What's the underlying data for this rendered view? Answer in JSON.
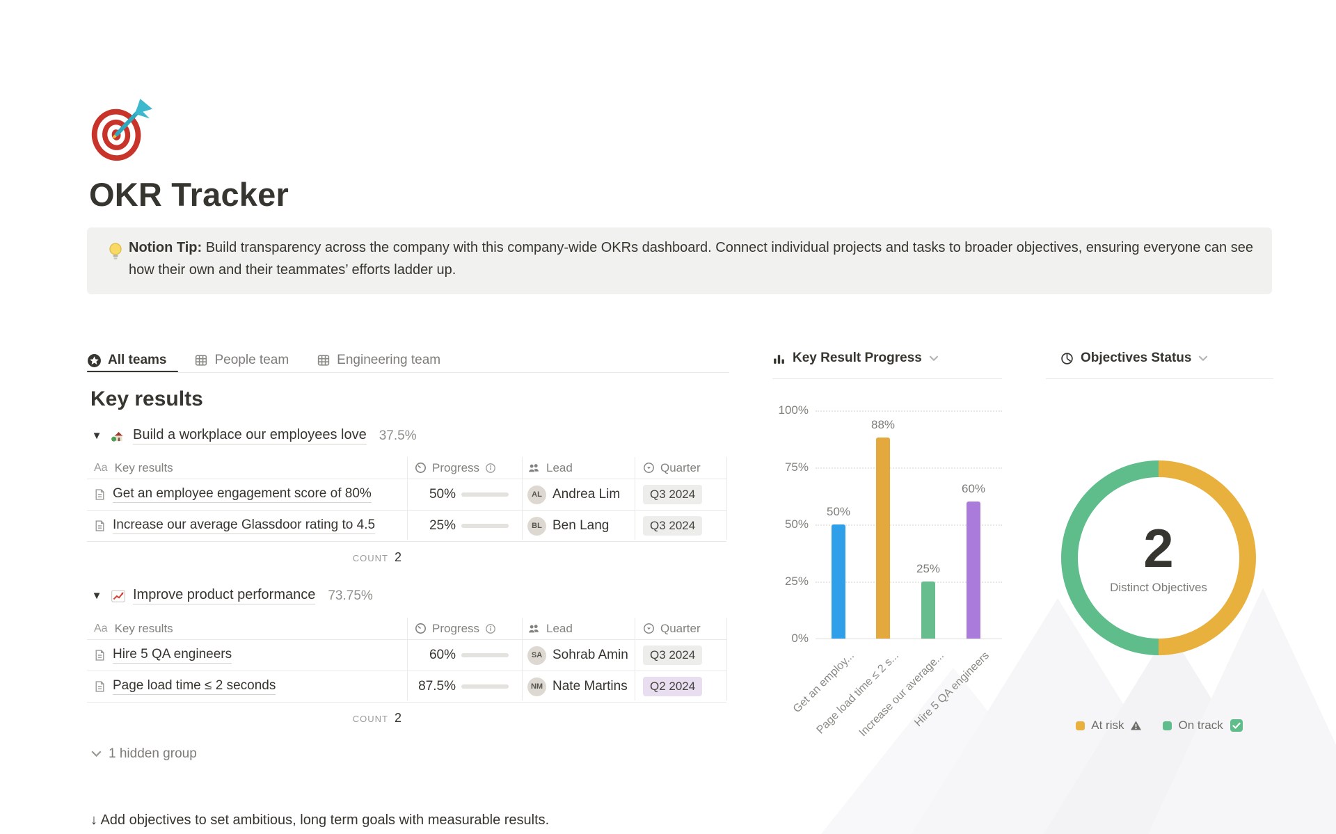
{
  "page": {
    "title": "OKR Tracker",
    "hidden_group": "1 hidden group",
    "footer": "↓ Add objectives to set ambitious, long term goals with measurable results."
  },
  "tip": {
    "label": "Notion Tip:",
    "text": " Build transparency across the company with this company-wide OKRs dashboard. Connect individual projects and tasks to broader objectives, ensuring everyone can see how their own and their teammates’ efforts ladder up."
  },
  "tabs": [
    {
      "label": "All teams"
    },
    {
      "label": "People team"
    },
    {
      "label": "Engineering team"
    }
  ],
  "section": {
    "heading": "Key results"
  },
  "table": {
    "name_prefix": "Aa",
    "col_name": "Key results",
    "col_progress": "Progress",
    "col_lead": "Lead",
    "col_quarter": "Quarter",
    "count_label": "COUNT"
  },
  "groups": [
    {
      "title": "Build a workplace our employees love",
      "percent": "37.5%",
      "count": "2",
      "rows": [
        {
          "title": "Get an employee engagement score of 80%",
          "progress_label": "50%",
          "progress": 50,
          "lead": "Andrea Lim",
          "initials": "AL",
          "quarter": "Q3 2024",
          "quarter_style": "gray"
        },
        {
          "title": "Increase our average Glassdoor rating to 4.5",
          "progress_label": "25%",
          "progress": 25,
          "lead": "Ben Lang",
          "initials": "BL",
          "quarter": "Q3 2024",
          "quarter_style": "gray"
        }
      ]
    },
    {
      "title": "Improve product performance",
      "percent": "73.75%",
      "count": "2",
      "rows": [
        {
          "title": "Hire 5 QA engineers",
          "progress_label": "60%",
          "progress": 60,
          "lead": "Sohrab Amin",
          "initials": "SA",
          "quarter": "Q3 2024",
          "quarter_style": "gray"
        },
        {
          "title": "Page load time ≤ 2 seconds",
          "progress_label": "87.5%",
          "progress": 87.5,
          "lead": "Nate Martins",
          "initials": "NM",
          "quarter": "Q2 2024",
          "quarter_style": "purple"
        }
      ]
    }
  ],
  "chart_data": [
    {
      "type": "bar",
      "title": "Key Result Progress",
      "categories": [
        "Get an employ...",
        "Page load time ≤ 2 s...",
        "Increase our average...",
        "Hire 5 QA engineers"
      ],
      "values": [
        50,
        88,
        25,
        60
      ],
      "value_labels": [
        "50%",
        "88%",
        "25%",
        "60%"
      ],
      "colors": [
        "#2f9fe9",
        "#e3a93c",
        "#67bd8e",
        "#ab7bdb"
      ],
      "yticks": [
        "100%",
        "75%",
        "50%",
        "25%",
        "0%"
      ],
      "ylim": [
        0,
        100
      ],
      "grid": "dotted-horizontal"
    },
    {
      "type": "pie",
      "title": "Objectives Status",
      "center_value": "2",
      "center_label": "Distinct Objectives",
      "slices": [
        {
          "name": "At risk",
          "value": 1,
          "color": "#e8b13e"
        },
        {
          "name": "On track",
          "value": 1,
          "color": "#5fbd8b"
        }
      ],
      "legend": [
        {
          "label": "At risk"
        },
        {
          "label": "On track"
        }
      ]
    }
  ]
}
